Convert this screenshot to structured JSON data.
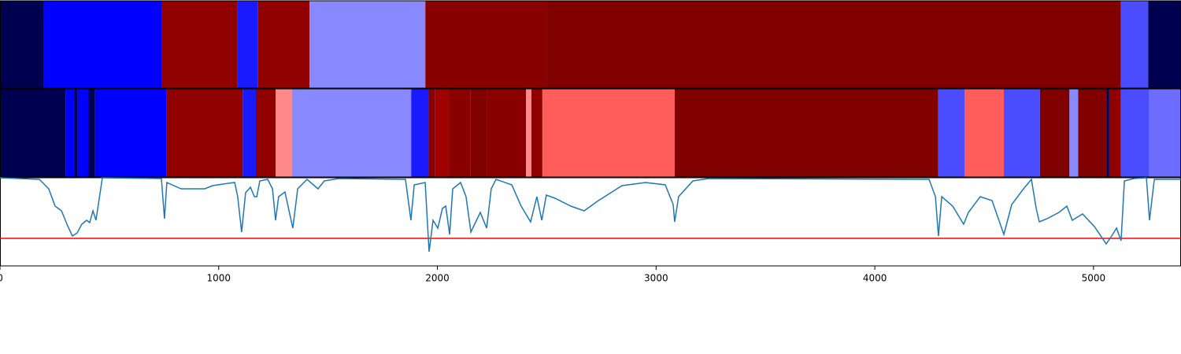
{
  "chart_data": {
    "type": "segments",
    "xlim": [
      0,
      5400
    ],
    "xticks": [
      0,
      1000,
      2000,
      3000,
      4000,
      5000
    ],
    "tracks": [
      {
        "segments": [
          {
            "start": 0,
            "end": 200,
            "color": "#000050"
          },
          {
            "start": 200,
            "end": 740,
            "color": "#0000ff"
          },
          {
            "start": 740,
            "end": 1085,
            "color": "#900000"
          },
          {
            "start": 1085,
            "end": 1180,
            "color": "#1a1aff"
          },
          {
            "start": 1180,
            "end": 1415,
            "color": "#900000"
          },
          {
            "start": 1415,
            "end": 1945,
            "color": "#8888ff"
          },
          {
            "start": 1945,
            "end": 2500,
            "color": "#880000"
          },
          {
            "start": 2500,
            "end": 5125,
            "color": "#800000"
          },
          {
            "start": 5125,
            "end": 5250,
            "color": "#4c4cff"
          },
          {
            "start": 5250,
            "end": 5400,
            "color": "#000050"
          }
        ]
      },
      {
        "segments": [
          {
            "start": 0,
            "end": 300,
            "color": "#000050"
          },
          {
            "start": 300,
            "end": 340,
            "color": "#0000ff"
          },
          {
            "start": 340,
            "end": 355,
            "color": "#000050"
          },
          {
            "start": 355,
            "end": 405,
            "color": "#0000ff"
          },
          {
            "start": 405,
            "end": 435,
            "color": "#000050"
          },
          {
            "start": 435,
            "end": 760,
            "color": "#0000ff"
          },
          {
            "start": 760,
            "end": 1110,
            "color": "#900000"
          },
          {
            "start": 1110,
            "end": 1170,
            "color": "#1a1aff"
          },
          {
            "start": 1170,
            "end": 1260,
            "color": "#900000"
          },
          {
            "start": 1260,
            "end": 1335,
            "color": "#ff8888"
          },
          {
            "start": 1335,
            "end": 1880,
            "color": "#8888ff"
          },
          {
            "start": 1880,
            "end": 1960,
            "color": "#1a1aff"
          },
          {
            "start": 1960,
            "end": 1990,
            "color": "#880000"
          },
          {
            "start": 1990,
            "end": 2050,
            "color": "#a00000"
          },
          {
            "start": 2050,
            "end": 2150,
            "color": "#8a0000"
          },
          {
            "start": 2150,
            "end": 2225,
            "color": "#800000"
          },
          {
            "start": 2225,
            "end": 2405,
            "color": "#8a0000"
          },
          {
            "start": 2405,
            "end": 2430,
            "color": "#ff8888"
          },
          {
            "start": 2430,
            "end": 2480,
            "color": "#900000"
          },
          {
            "start": 2480,
            "end": 3085,
            "color": "#ff5c5c"
          },
          {
            "start": 3085,
            "end": 4290,
            "color": "#800000"
          },
          {
            "start": 4290,
            "end": 4410,
            "color": "#4c4cff"
          },
          {
            "start": 4410,
            "end": 4590,
            "color": "#ff5c5c"
          },
          {
            "start": 4590,
            "end": 4755,
            "color": "#4c4cff"
          },
          {
            "start": 4755,
            "end": 4890,
            "color": "#800000"
          },
          {
            "start": 4890,
            "end": 4930,
            "color": "#8888ff"
          },
          {
            "start": 4930,
            "end": 5060,
            "color": "#800000"
          },
          {
            "start": 5060,
            "end": 5072,
            "color": "#000050"
          },
          {
            "start": 5072,
            "end": 5125,
            "color": "#900000"
          },
          {
            "start": 5125,
            "end": 5255,
            "color": "#4c4cff"
          },
          {
            "start": 5255,
            "end": 5400,
            "color": "#6c6cff"
          }
        ]
      }
    ],
    "line": {
      "color": "#1f77b4",
      "ylim": [
        0,
        112
      ],
      "x": [
        0,
        180,
        223,
        252,
        281,
        306,
        331,
        353,
        374,
        396,
        410,
        425,
        439,
        468,
        738,
        752,
        763,
        828,
        936,
        972,
        1044,
        1073,
        1087,
        1105,
        1123,
        1145,
        1163,
        1174,
        1188,
        1224,
        1246,
        1260,
        1274,
        1303,
        1339,
        1361,
        1404,
        1454,
        1483,
        1548,
        1854,
        1879,
        1894,
        1944,
        1962,
        1980,
        2002,
        2023,
        2038,
        2056,
        2070,
        2106,
        2131,
        2153,
        2196,
        2225,
        2246,
        2268,
        2340,
        2383,
        2426,
        2455,
        2477,
        2498,
        2538,
        2610,
        2671,
        2736,
        2844,
        2952,
        3042,
        3078,
        3085,
        3103,
        3168,
        3240,
        4248,
        4277,
        4291,
        4306,
        4356,
        4406,
        4428,
        4482,
        4536,
        4590,
        4626,
        4680,
        4716,
        4738,
        4752,
        4788,
        4842,
        4878,
        4903,
        4950,
        5004,
        5058,
        5083,
        5105,
        5126,
        5141,
        5184,
        5242,
        5256,
        5278,
        5400
      ],
      "values": [
        112,
        110,
        98,
        76,
        70,
        53,
        38,
        42,
        53,
        58,
        55,
        70,
        58,
        112,
        111,
        60,
        106,
        98,
        98,
        102,
        105,
        106,
        88,
        43,
        93,
        100,
        88,
        88,
        108,
        110,
        98,
        58,
        88,
        94,
        48,
        98,
        110,
        98,
        108,
        111,
        110,
        58,
        103,
        106,
        18,
        58,
        48,
        73,
        76,
        40,
        98,
        106,
        88,
        43,
        68,
        48,
        98,
        110,
        103,
        76,
        56,
        88,
        58,
        90,
        86,
        76,
        70,
        83,
        102,
        106,
        103,
        78,
        56,
        88,
        108,
        111,
        110,
        88,
        38,
        88,
        76,
        53,
        68,
        88,
        83,
        40,
        78,
        98,
        110,
        73,
        56,
        60,
        68,
        76,
        58,
        66,
        50,
        28,
        38,
        48,
        32,
        108,
        111,
        112,
        58,
        110,
        110
      ],
      "threshold": {
        "value": 35,
        "color": "#ff0000"
      }
    }
  }
}
